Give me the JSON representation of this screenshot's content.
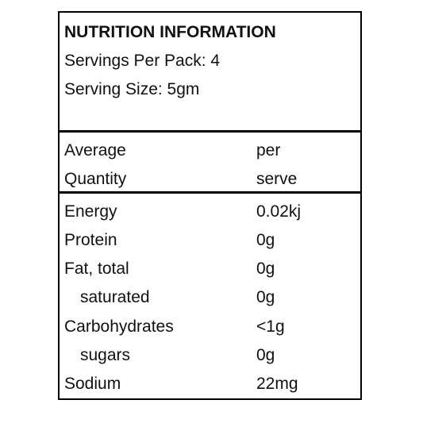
{
  "header": {
    "title": "NUTRITION INFORMATION",
    "servings": "Servings Per Pack: 4",
    "serving_size": "Serving Size: 5gm"
  },
  "table": {
    "head": [
      [
        "Average",
        "per"
      ],
      [
        "Quantity",
        "serve"
      ]
    ],
    "rows": [
      [
        "Energy",
        "0.02kj"
      ],
      [
        "Protein",
        "0g"
      ],
      [
        "Fat, total",
        "0g"
      ],
      [
        "saturated",
        "0g"
      ],
      [
        "Carbohydrates",
        "<1g"
      ],
      [
        "sugars",
        "0g"
      ],
      [
        "Sodium",
        "22mg"
      ]
    ]
  }
}
